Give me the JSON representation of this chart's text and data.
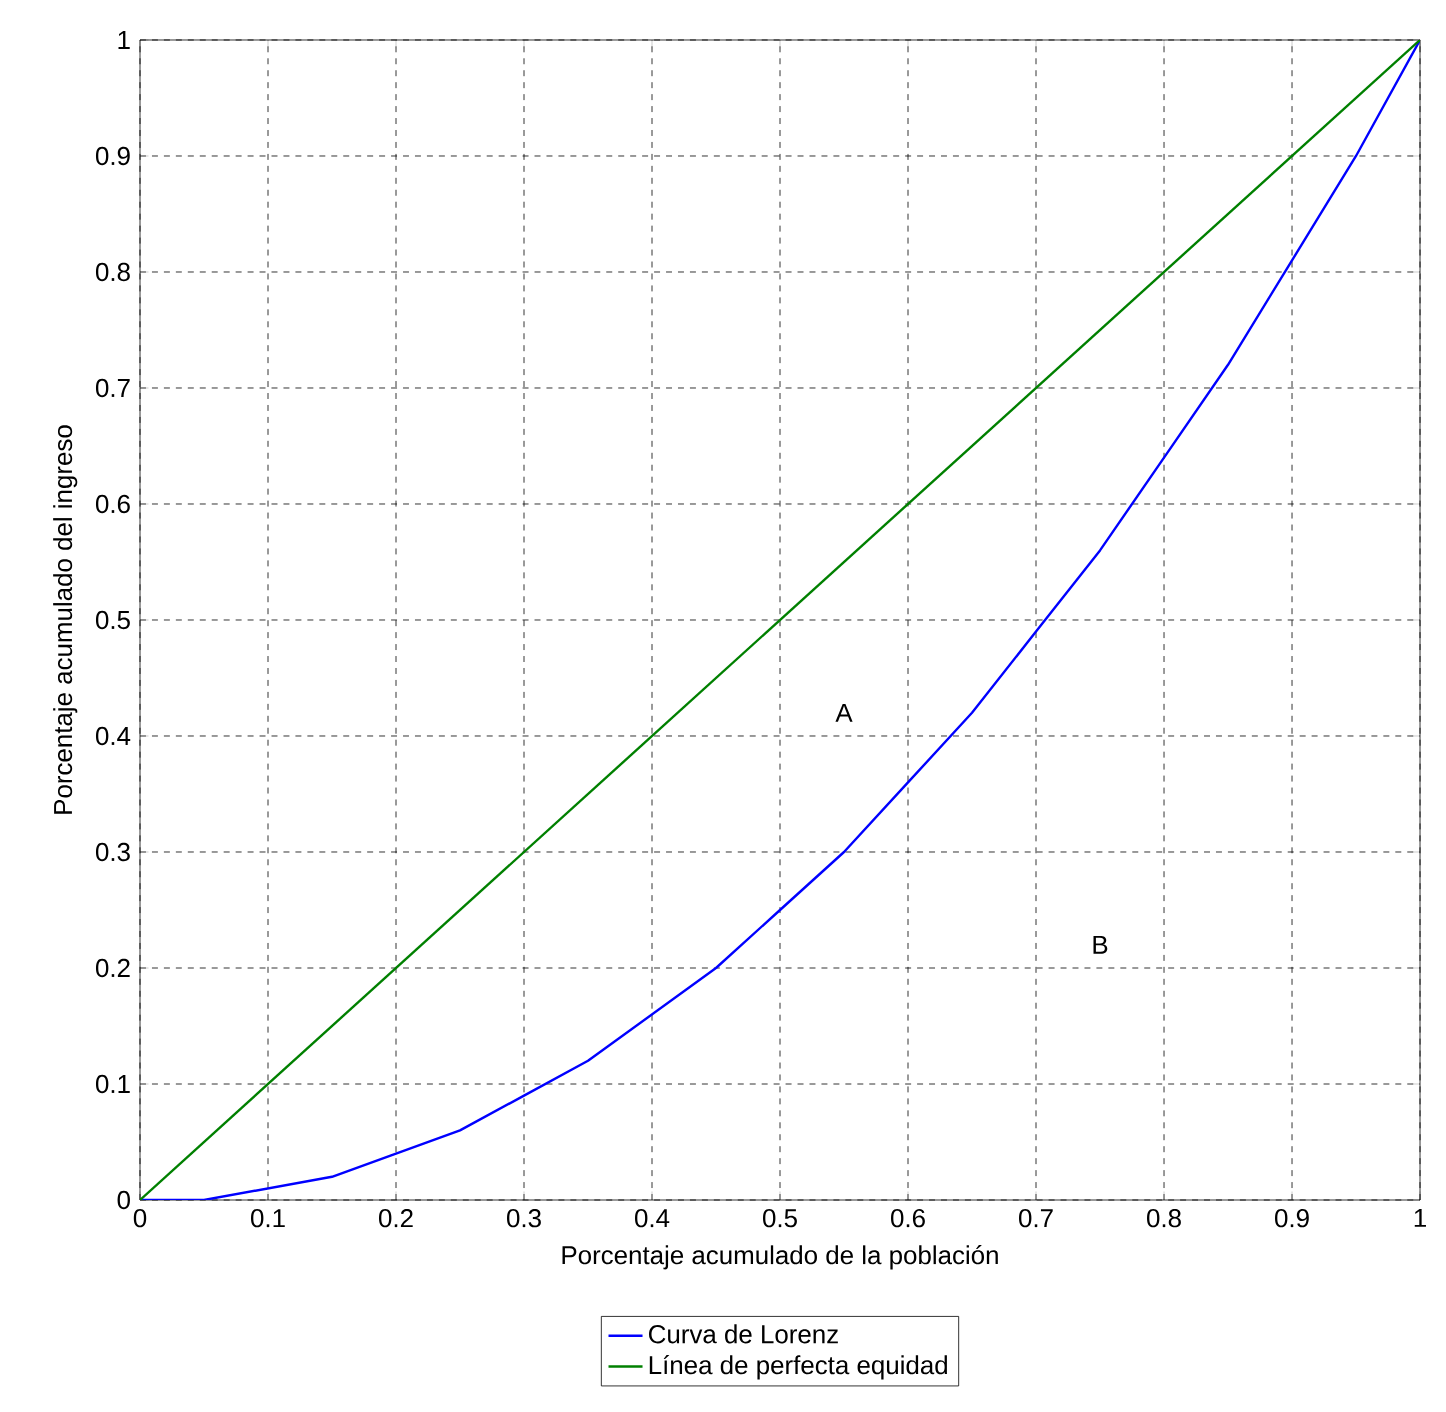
{
  "chart_data": {
    "type": "line",
    "xlabel": "Porcentaje acumulado de la población",
    "ylabel": "Porcentaje acumulado del ingreso",
    "series": [
      {
        "name": "Curva de Lorenz",
        "color": "#0000ff",
        "x": [
          0,
          0.05,
          0.1,
          0.15,
          0.2,
          0.25,
          0.3,
          0.35,
          0.4,
          0.45,
          0.5,
          0.55,
          0.6,
          0.65,
          0.7,
          0.75,
          0.8,
          0.85,
          0.9,
          0.95,
          1
        ],
        "values": [
          0,
          0,
          0.01,
          0.02,
          0.04,
          0.06,
          0.09,
          0.12,
          0.16,
          0.2,
          0.25,
          0.3,
          0.36,
          0.42,
          0.49,
          0.56,
          0.64,
          0.72,
          0.81,
          0.9,
          1
        ]
      },
      {
        "name": "Línea de perfecta equidad",
        "color": "#008000",
        "x": [
          0,
          1
        ],
        "values": [
          0,
          1
        ]
      }
    ],
    "annotations": [
      "A",
      "B"
    ],
    "xlim": [
      0,
      1
    ],
    "ylim": [
      0,
      1
    ],
    "xticks": [
      0,
      0.1,
      0.2,
      0.3,
      0.4,
      0.5,
      0.6,
      0.7,
      0.8,
      0.9,
      1
    ],
    "yticks": [
      0,
      0.1,
      0.2,
      0.3,
      0.4,
      0.5,
      0.6,
      0.7,
      0.8,
      0.9,
      1
    ],
    "grid": true,
    "legend": "bottom",
    "marker": "none",
    "line_style": "solid"
  }
}
